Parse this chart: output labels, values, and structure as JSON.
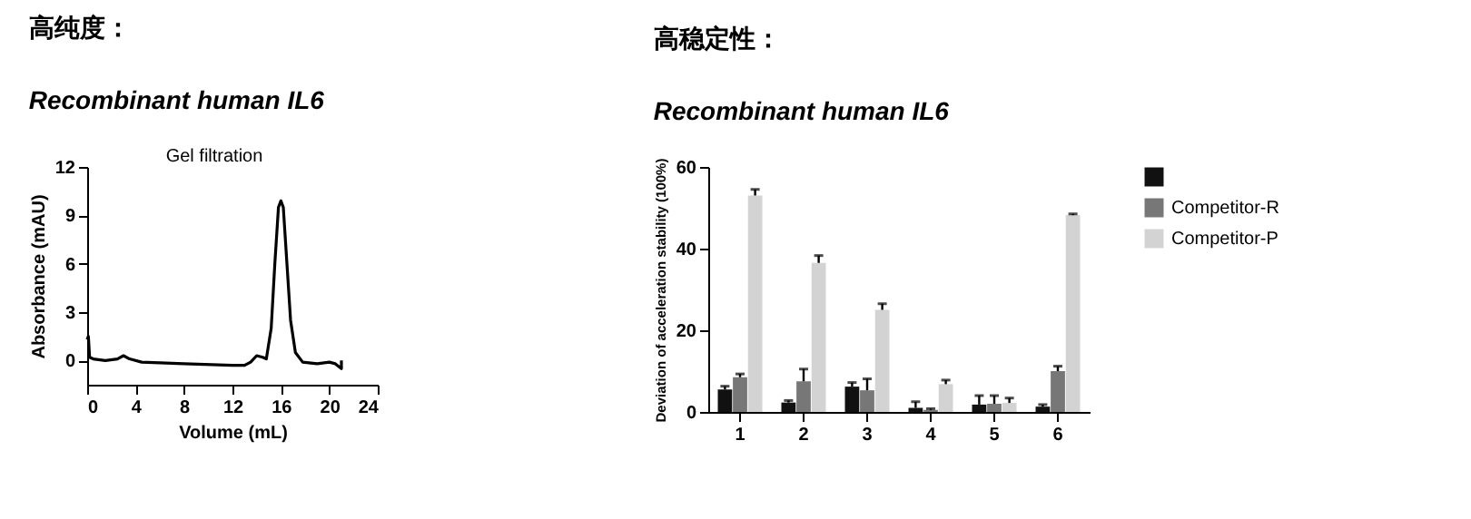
{
  "chart_data": [
    {
      "type": "line",
      "title": "高纯度：",
      "subtitle": "Recombinant human IL6",
      "annotations": [
        "Gel filtration"
      ],
      "xlabel": "Volume (mL)",
      "ylabel": "Absorbance (mAU)",
      "xlim": [
        0,
        24
      ],
      "xticks": [
        0,
        4,
        8,
        12,
        16,
        20,
        24
      ],
      "ylim": [
        -1.5,
        12
      ],
      "yticks": [
        0,
        3,
        6,
        9,
        12
      ],
      "grid": false,
      "legend": false,
      "series": [
        {
          "color": "#000000",
          "x": [
            0,
            0.1,
            0.2,
            0.5,
            1.5,
            2.5,
            3,
            3.5,
            4.5,
            8,
            12,
            13,
            13.5,
            14,
            14.5,
            14.8,
            15.2,
            15.5,
            15.8,
            16,
            16.2,
            16.5,
            16.8,
            17.2,
            17.8,
            19,
            20,
            20.5,
            21,
            21
          ],
          "values": [
            1.3,
            1.5,
            0.2,
            0.1,
            0.0,
            0.1,
            0.3,
            0.1,
            -0.1,
            -0.2,
            -0.3,
            -0.3,
            -0.1,
            0.3,
            0.2,
            0.1,
            2,
            6,
            9.5,
            9.9,
            9.5,
            6,
            2.5,
            0.5,
            -0.1,
            -0.2,
            -0.1,
            -0.2,
            -0.5,
            0
          ]
        }
      ]
    },
    {
      "type": "bar",
      "title": "高稳定性：",
      "subtitle": "Recombinant human IL6",
      "ylabel": "Deviation of acceleration stability (100%)",
      "categories": [
        "1",
        "2",
        "3",
        "4",
        "5",
        "6"
      ],
      "ylim": [
        0,
        60
      ],
      "yticks": [
        0,
        20,
        40,
        60
      ],
      "grid": false,
      "legend": "right",
      "series": [
        {
          "color": "#111111",
          "values": [
            5.5,
            2.3,
            6.2,
            1.0,
            1.8,
            1.3
          ],
          "errors": [
            0.8,
            0.5,
            1.0,
            1.5,
            2.2,
            0.5
          ]
        },
        {
          "name": "Competitor-R",
          "color": "#777777",
          "values": [
            8.5,
            7.5,
            5.3,
            0.5,
            2.0,
            10
          ],
          "errors": [
            0.8,
            3,
            2.8,
            0.3,
            2,
            1.2
          ]
        },
        {
          "name": "Competitor-P",
          "color": "#d3d3d3",
          "values": [
            53,
            36.5,
            25,
            6.8,
            2.2,
            48.2
          ],
          "errors": [
            1.5,
            1.8,
            1.5,
            1.0,
            1.2,
            0.3
          ]
        }
      ]
    }
  ]
}
